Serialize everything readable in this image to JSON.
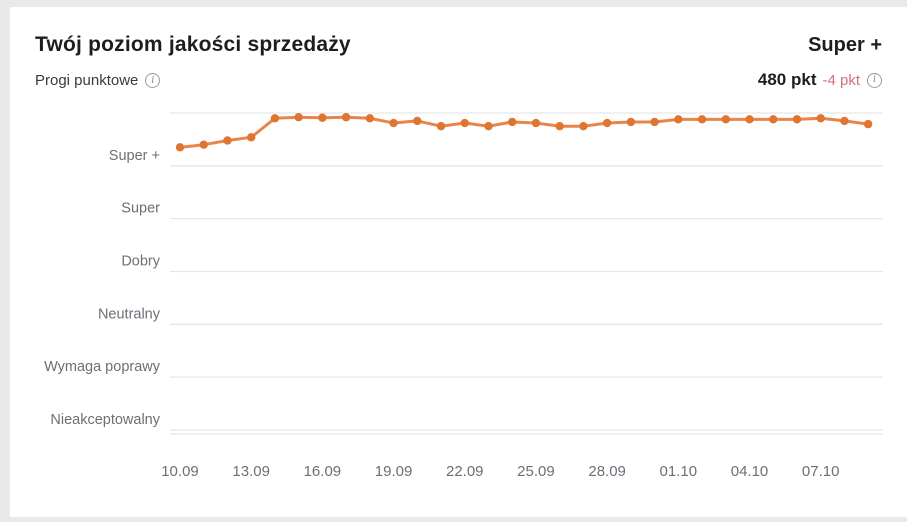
{
  "card": {
    "title": "Twój poziom jakości sprzedaży",
    "current_level": "Super +",
    "subtitle": "Progi punktowe",
    "points_value": "480 pkt",
    "points_change": "-4 pkt"
  },
  "icons": {
    "info_glyph": "i"
  },
  "colors": {
    "page_background": "#e9e9e9",
    "card_background": "#ffffff",
    "line": "#e9854a",
    "dot": "#de7530",
    "grid": "#e7e7e7",
    "grid_shadow": "#f0f0f0",
    "axis_text": "#6b6f76",
    "negative_change": "#d4717f"
  },
  "chart_data": {
    "type": "line",
    "title": "Progi punktowe",
    "legend_position": "none",
    "grid": true,
    "y_axis_kind": "categorical-bands",
    "y_categories_top_to_bottom": [
      "Super +",
      "Super",
      "Dobry",
      "Neutralny",
      "Wymaga poprawy",
      "Nieakceptowalny"
    ],
    "x_tick_every": 3,
    "x_tick_labels": [
      "10.09",
      "13.09",
      "16.09",
      "19.09",
      "22.09",
      "25.09",
      "28.09",
      "01.10",
      "04.10",
      "07.10"
    ],
    "x": [
      "10.09",
      "11.09",
      "12.09",
      "13.09",
      "14.09",
      "15.09",
      "16.09",
      "17.09",
      "18.09",
      "19.09",
      "20.09",
      "21.09",
      "22.09",
      "23.09",
      "24.09",
      "25.09",
      "26.09",
      "27.09",
      "28.09",
      "29.09",
      "30.09",
      "01.10",
      "02.10",
      "03.10",
      "04.10",
      "05.10",
      "06.10",
      "07.10",
      "08.10",
      "09.10"
    ],
    "value_unit": "fraction of Super+ band above the 'Super +' threshold line (0 = Super + line, 1 = chart top)",
    "series": [
      {
        "name": "poziom jakości sprzedaży",
        "current_value_label": "480 pkt",
        "change_label": "-4 pkt",
        "values": [
          0.35,
          0.4,
          0.48,
          0.54,
          0.9,
          0.92,
          0.91,
          0.92,
          0.9,
          0.81,
          0.85,
          0.75,
          0.81,
          0.75,
          0.83,
          0.81,
          0.75,
          0.75,
          0.81,
          0.83,
          0.83,
          0.88,
          0.88,
          0.88,
          0.88,
          0.88,
          0.88,
          0.9,
          0.85,
          0.79
        ]
      }
    ]
  }
}
